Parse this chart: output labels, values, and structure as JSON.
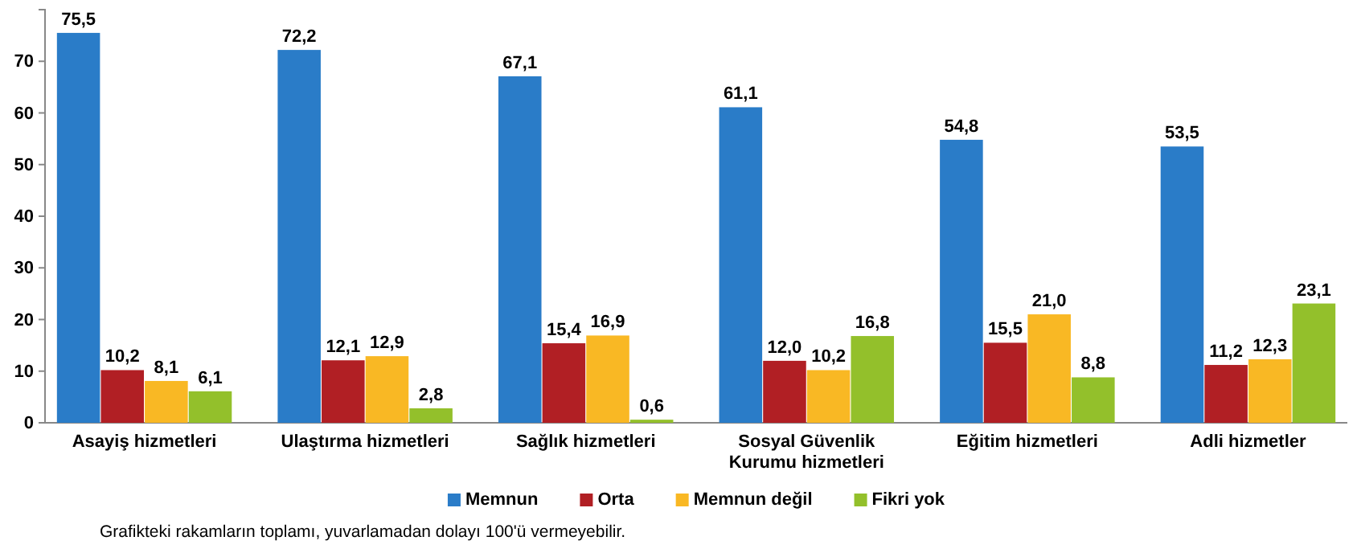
{
  "chart_data": {
    "type": "bar",
    "categories": [
      "Asayiş hizmetleri",
      "Ulaştırma hizmetleri",
      "Sağlık hizmetleri",
      "Sosyal Güvenlik Kurumu hizmetleri",
      "Eğitim hizmetleri",
      "Adli hizmetler"
    ],
    "series": [
      {
        "name": "Memnun",
        "color": "#2a7cc8",
        "values": [
          75.5,
          72.2,
          67.1,
          61.1,
          54.8,
          53.5
        ]
      },
      {
        "name": "Orta",
        "color": "#b11f24",
        "values": [
          10.2,
          12.1,
          15.4,
          12.0,
          15.5,
          11.2
        ]
      },
      {
        "name": "Memnun değil",
        "color": "#f9b824",
        "values": [
          8.1,
          12.9,
          16.9,
          10.2,
          21.0,
          12.3
        ]
      },
      {
        "name": "Fikri yok",
        "color": "#93c02b",
        "values": [
          6.1,
          2.8,
          0.6,
          16.8,
          8.8,
          23.1
        ]
      }
    ],
    "value_labels": [
      [
        "75,5",
        "72,2",
        "67,1",
        "61,1",
        "54,8",
        "53,5"
      ],
      [
        "10,2",
        "12,1",
        "15,4",
        "12,0",
        "15,5",
        "11,2"
      ],
      [
        "8,1",
        "12,9",
        "16,9",
        "10,2",
        "21,0",
        "12,3"
      ],
      [
        "6,1",
        "2,8",
        "0,6",
        "16,8",
        "8,8",
        "23,1"
      ]
    ],
    "ylim": [
      0,
      80
    ],
    "yticks": [
      0,
      10,
      20,
      30,
      40,
      50,
      60,
      70
    ],
    "grid": false,
    "legend": "bottom",
    "annotations": [
      "Grafikteki rakamların toplamı, yuvarlamadan dolayı 100'ü vermeyebilir."
    ]
  }
}
